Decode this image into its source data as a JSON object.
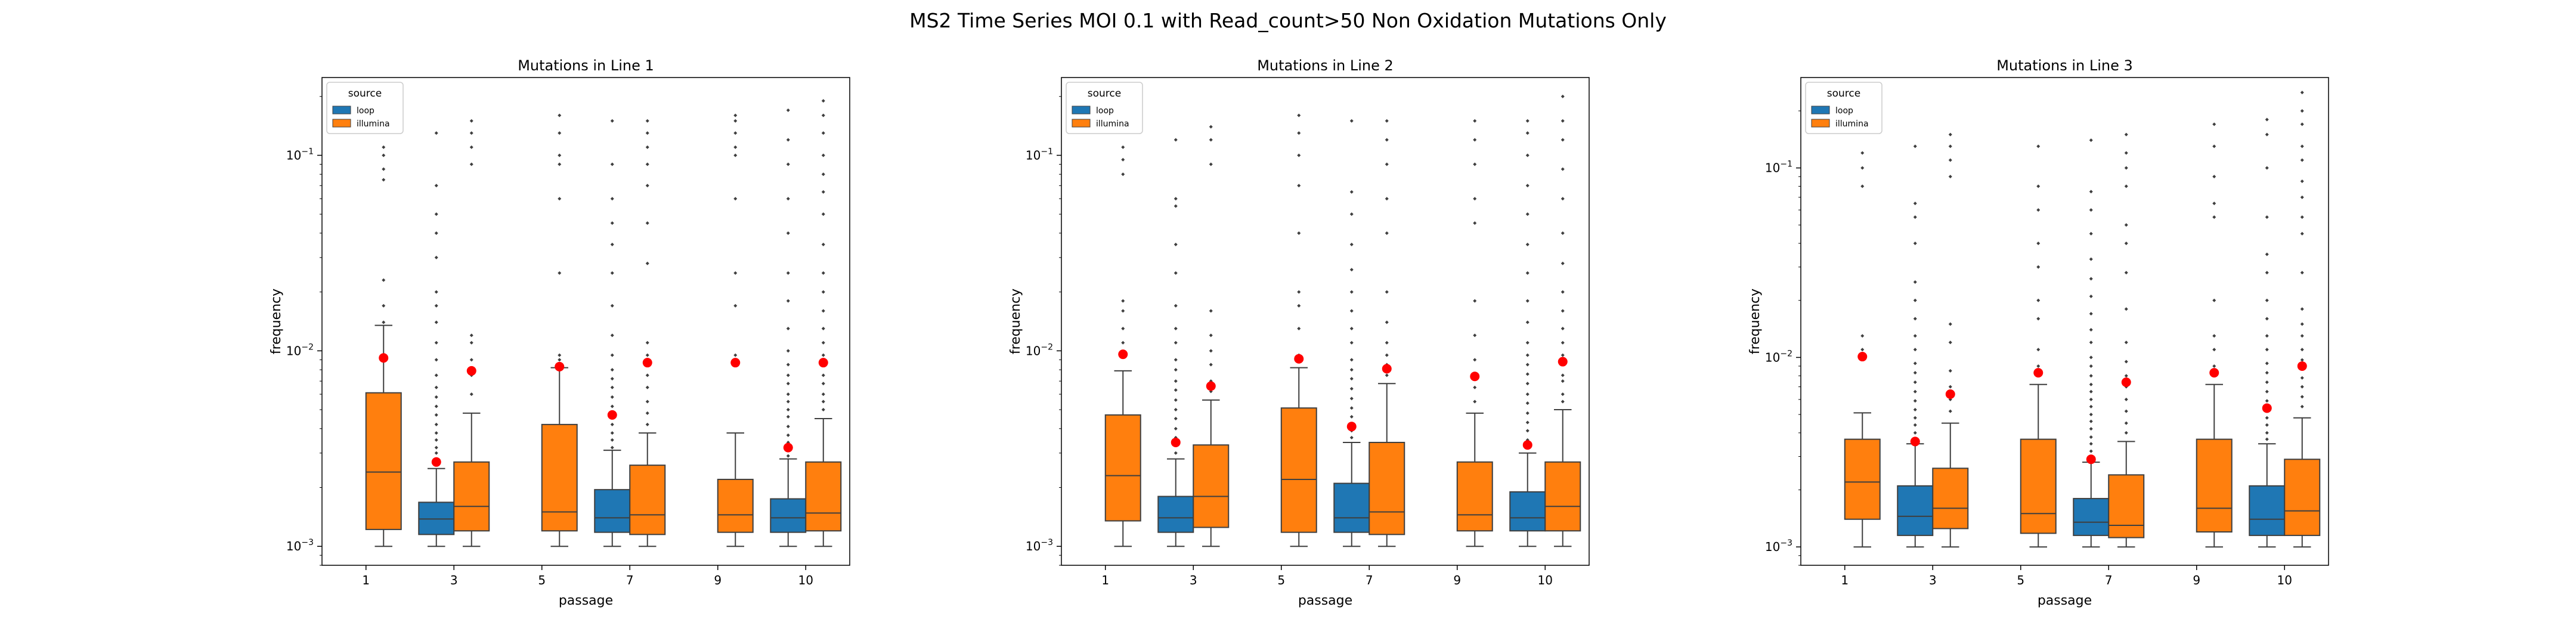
{
  "figure": {
    "suptitle": "MS2 Time Series MOI 0.1 with Read_count>50 Non Oxidation Mutations Only"
  },
  "colors": {
    "loop": "#1f77b4",
    "illumina": "#ff7f0e",
    "mean_marker": "#ff0000"
  },
  "chart_data": [
    {
      "type": "box",
      "title": "Mutations in Line 1",
      "xlabel": "passage",
      "ylabel": "frequency",
      "yscale": "log",
      "ylim": [
        0.0008,
        0.25
      ],
      "grid": false,
      "categories": [
        "1",
        "3",
        "5",
        "7",
        "9",
        "10"
      ],
      "legend": {
        "title": "source",
        "entries": [
          "loop",
          "illumina"
        ],
        "placement": "upper-left"
      },
      "series": [
        {
          "name": "loop",
          "color": "#1f77b4",
          "boxes": [
            null,
            {
              "whislo": 0.001,
              "q1": 0.00115,
              "median": 0.00138,
              "q3": 0.00168,
              "whishi": 0.0025,
              "mean": 0.0027,
              "fliers": [
                0.0028,
                0.003,
                0.0032,
                0.0035,
                0.0038,
                0.0042,
                0.0047,
                0.0052,
                0.0058,
                0.0065,
                0.0075,
                0.009,
                0.011,
                0.014,
                0.017,
                0.02,
                0.03,
                0.04,
                0.05,
                0.07,
                0.13
              ]
            },
            null,
            {
              "whislo": 0.001,
              "q1": 0.00118,
              "median": 0.0014,
              "q3": 0.00195,
              "whishi": 0.0031,
              "mean": 0.0047,
              "fliers": [
                0.0032,
                0.0035,
                0.0038,
                0.0042,
                0.0047,
                0.0052,
                0.0058,
                0.0065,
                0.0072,
                0.008,
                0.0095,
                0.012,
                0.017,
                0.025,
                0.035,
                0.045,
                0.06,
                0.09,
                0.15
              ]
            },
            null,
            {
              "whislo": 0.001,
              "q1": 0.00118,
              "median": 0.0014,
              "q3": 0.00175,
              "whishi": 0.0028,
              "mean": 0.0032,
              "fliers": [
                0.0029,
                0.0031,
                0.0034,
                0.0037,
                0.0041,
                0.0046,
                0.005,
                0.0055,
                0.006,
                0.0068,
                0.0075,
                0.0085,
                0.01,
                0.013,
                0.018,
                0.025,
                0.04,
                0.06,
                0.09,
                0.12,
                0.17
              ]
            }
          ]
        },
        {
          "name": "illumina",
          "color": "#ff7f0e",
          "boxes": [
            {
              "whislo": 0.001,
              "q1": 0.00122,
              "median": 0.0024,
              "q3": 0.0061,
              "whishi": 0.0135,
              "mean": 0.0092,
              "fliers": [
                0.014,
                0.017,
                0.023,
                0.075,
                0.085,
                0.1,
                0.11
              ]
            },
            {
              "whislo": 0.001,
              "q1": 0.0012,
              "median": 0.0016,
              "q3": 0.0027,
              "whishi": 0.0048,
              "mean": 0.0079,
              "fliers": [
                0.006,
                0.0075,
                0.009,
                0.011,
                0.012,
                0.09,
                0.11,
                0.13,
                0.15
              ]
            },
            {
              "whislo": 0.001,
              "q1": 0.0012,
              "median": 0.0015,
              "q3": 0.0042,
              "whishi": 0.0082,
              "mean": 0.0083,
              "fliers": [
                0.0085,
                0.009,
                0.0095,
                0.025,
                0.06,
                0.09,
                0.1,
                0.13,
                0.16
              ]
            },
            {
              "whislo": 0.001,
              "q1": 0.00115,
              "median": 0.00145,
              "q3": 0.0026,
              "whishi": 0.0038,
              "mean": 0.0087,
              "fliers": [
                0.0042,
                0.0048,
                0.0055,
                0.0065,
                0.0075,
                0.0085,
                0.0095,
                0.011,
                0.028,
                0.045,
                0.07,
                0.09,
                0.11,
                0.13,
                0.15
              ]
            },
            {
              "whislo": 0.001,
              "q1": 0.00118,
              "median": 0.00145,
              "q3": 0.0022,
              "whishi": 0.0038,
              "mean": 0.0087,
              "fliers": [
                0.0095,
                0.017,
                0.025,
                0.06,
                0.1,
                0.11,
                0.13,
                0.15,
                0.16
              ]
            },
            {
              "whislo": 0.001,
              "q1": 0.0012,
              "median": 0.00148,
              "q3": 0.0027,
              "whishi": 0.0045,
              "mean": 0.0087,
              "fliers": [
                0.005,
                0.0055,
                0.006,
                0.0068,
                0.0075,
                0.0085,
                0.0095,
                0.011,
                0.013,
                0.016,
                0.02,
                0.025,
                0.035,
                0.05,
                0.065,
                0.08,
                0.1,
                0.13,
                0.16,
                0.19
              ]
            }
          ]
        }
      ]
    },
    {
      "type": "box",
      "title": "Mutations in Line 2",
      "xlabel": "passage",
      "ylabel": "frequency",
      "yscale": "log",
      "ylim": [
        0.0008,
        0.25
      ],
      "grid": false,
      "categories": [
        "1",
        "3",
        "5",
        "7",
        "9",
        "10"
      ],
      "legend": {
        "title": "source",
        "entries": [
          "loop",
          "illumina"
        ],
        "placement": "upper-left"
      },
      "series": [
        {
          "name": "loop",
          "color": "#1f77b4",
          "boxes": [
            null,
            {
              "whislo": 0.001,
              "q1": 0.00118,
              "median": 0.0014,
              "q3": 0.0018,
              "whishi": 0.0028,
              "mean": 0.0034,
              "fliers": [
                0.003,
                0.0033,
                0.0036,
                0.004,
                0.0045,
                0.005,
                0.0056,
                0.0063,
                0.007,
                0.008,
                0.009,
                0.011,
                0.013,
                0.017,
                0.025,
                0.035,
                0.055,
                0.06,
                0.12
              ]
            },
            null,
            {
              "whislo": 0.001,
              "q1": 0.00118,
              "median": 0.0014,
              "q3": 0.0021,
              "whishi": 0.0034,
              "mean": 0.0041,
              "fliers": [
                0.0036,
                0.0039,
                0.0042,
                0.0046,
                0.0051,
                0.0057,
                0.0064,
                0.0072,
                0.008,
                0.009,
                0.011,
                0.013,
                0.016,
                0.02,
                0.026,
                0.035,
                0.05,
                0.065,
                0.15
              ]
            },
            null,
            {
              "whislo": 0.001,
              "q1": 0.0012,
              "median": 0.0014,
              "q3": 0.0019,
              "whishi": 0.003,
              "mean": 0.0033,
              "fliers": [
                0.0032,
                0.0035,
                0.0039,
                0.0043,
                0.0048,
                0.0054,
                0.006,
                0.0068,
                0.0076,
                0.0085,
                0.0095,
                0.011,
                0.014,
                0.018,
                0.025,
                0.035,
                0.05,
                0.07,
                0.1,
                0.13,
                0.15
              ]
            }
          ]
        },
        {
          "name": "illumina",
          "color": "#ff7f0e",
          "boxes": [
            {
              "whislo": 0.001,
              "q1": 0.00135,
              "median": 0.0023,
              "q3": 0.0047,
              "whishi": 0.0079,
              "mean": 0.0096,
              "fliers": [
                0.011,
                0.013,
                0.016,
                0.018,
                0.08,
                0.095,
                0.11
              ]
            },
            {
              "whislo": 0.001,
              "q1": 0.00125,
              "median": 0.0018,
              "q3": 0.0033,
              "whishi": 0.0056,
              "mean": 0.0066,
              "fliers": [
                0.0062,
                0.007,
                0.0085,
                0.01,
                0.012,
                0.016,
                0.09,
                0.12,
                0.14
              ]
            },
            {
              "whislo": 0.001,
              "q1": 0.00118,
              "median": 0.0022,
              "q3": 0.0051,
              "whishi": 0.0082,
              "mean": 0.0091,
              "fliers": [
                0.0095,
                0.013,
                0.017,
                0.02,
                0.04,
                0.07,
                0.1,
                0.13,
                0.16
              ]
            },
            {
              "whislo": 0.001,
              "q1": 0.00115,
              "median": 0.0015,
              "q3": 0.0034,
              "whishi": 0.0068,
              "mean": 0.0081,
              "fliers": [
                0.0075,
                0.0085,
                0.0095,
                0.011,
                0.014,
                0.02,
                0.04,
                0.06,
                0.09,
                0.12,
                0.15
              ]
            },
            {
              "whislo": 0.001,
              "q1": 0.0012,
              "median": 0.00145,
              "q3": 0.0027,
              "whishi": 0.0048,
              "mean": 0.0074,
              "fliers": [
                0.0055,
                0.0065,
                0.0075,
                0.009,
                0.012,
                0.018,
                0.045,
                0.06,
                0.09,
                0.12,
                0.15
              ]
            },
            {
              "whislo": 0.001,
              "q1": 0.0012,
              "median": 0.0016,
              "q3": 0.0027,
              "whishi": 0.005,
              "mean": 0.0088,
              "fliers": [
                0.0055,
                0.006,
                0.007,
                0.0075,
                0.0085,
                0.0095,
                0.011,
                0.013,
                0.016,
                0.02,
                0.028,
                0.04,
                0.06,
                0.085,
                0.12,
                0.15,
                0.2
              ]
            }
          ]
        }
      ]
    },
    {
      "type": "box",
      "title": "Mutations in Line 3",
      "xlabel": "passage",
      "ylabel": "frequency",
      "yscale": "log",
      "ylim": [
        0.0008,
        0.3
      ],
      "grid": false,
      "categories": [
        "1",
        "3",
        "5",
        "7",
        "9",
        "10"
      ],
      "legend": {
        "title": "source",
        "entries": [
          "loop",
          "illumina"
        ],
        "placement": "upper-left"
      },
      "series": [
        {
          "name": "loop",
          "color": "#1f77b4",
          "boxes": [
            null,
            {
              "whislo": 0.001,
              "q1": 0.00115,
              "median": 0.00145,
              "q3": 0.0021,
              "whishi": 0.0035,
              "mean": 0.0036,
              "fliers": [
                0.0037,
                0.004,
                0.0044,
                0.0048,
                0.0053,
                0.0059,
                0.0066,
                0.0074,
                0.0083,
                0.0093,
                0.011,
                0.013,
                0.016,
                0.02,
                0.025,
                0.04,
                0.055,
                0.065,
                0.13
              ]
            },
            null,
            {
              "whislo": 0.001,
              "q1": 0.00115,
              "median": 0.00135,
              "q3": 0.0018,
              "whishi": 0.0028,
              "mean": 0.0029,
              "fliers": [
                0.003,
                0.0032,
                0.0035,
                0.0038,
                0.0042,
                0.0046,
                0.005,
                0.0055,
                0.006,
                0.0066,
                0.0072,
                0.008,
                0.009,
                0.01,
                0.012,
                0.014,
                0.017,
                0.021,
                0.026,
                0.033,
                0.045,
                0.06,
                0.075,
                0.14
              ]
            },
            null,
            {
              "whislo": 0.001,
              "q1": 0.00115,
              "median": 0.0014,
              "q3": 0.0021,
              "whishi": 0.0035,
              "mean": 0.0054,
              "fliers": [
                0.0037,
                0.004,
                0.0044,
                0.0048,
                0.0053,
                0.0059,
                0.0066,
                0.0074,
                0.0083,
                0.0093,
                0.011,
                0.013,
                0.016,
                0.02,
                0.028,
                0.035,
                0.055,
                0.1,
                0.15,
                0.18
              ]
            }
          ]
        },
        {
          "name": "illumina",
          "color": "#ff7f0e",
          "boxes": [
            {
              "whislo": 0.001,
              "q1": 0.0014,
              "median": 0.0022,
              "q3": 0.0037,
              "whishi": 0.0051,
              "mean": 0.0101,
              "fliers": [
                0.011,
                0.013,
                0.08,
                0.1,
                0.12
              ]
            },
            {
              "whislo": 0.001,
              "q1": 0.00125,
              "median": 0.0016,
              "q3": 0.0026,
              "whishi": 0.0045,
              "mean": 0.0064,
              "fliers": [
                0.0052,
                0.006,
                0.007,
                0.0085,
                0.012,
                0.015,
                0.09,
                0.11,
                0.13,
                0.15
              ]
            },
            {
              "whislo": 0.001,
              "q1": 0.00118,
              "median": 0.0015,
              "q3": 0.0037,
              "whishi": 0.0072,
              "mean": 0.0083,
              "fliers": [
                0.009,
                0.011,
                0.016,
                0.02,
                0.03,
                0.04,
                0.06,
                0.08,
                0.13
              ]
            },
            {
              "whislo": 0.001,
              "q1": 0.00112,
              "median": 0.0013,
              "q3": 0.0024,
              "whishi": 0.0036,
              "mean": 0.0074,
              "fliers": [
                0.004,
                0.0045,
                0.0052,
                0.006,
                0.007,
                0.008,
                0.0095,
                0.012,
                0.018,
                0.028,
                0.04,
                0.05,
                0.08,
                0.1,
                0.12,
                0.15
              ]
            },
            {
              "whislo": 0.001,
              "q1": 0.0012,
              "median": 0.0016,
              "q3": 0.0037,
              "whishi": 0.0072,
              "mean": 0.0083,
              "fliers": [
                0.009,
                0.011,
                0.013,
                0.02,
                0.055,
                0.065,
                0.09,
                0.13,
                0.17
              ]
            },
            {
              "whislo": 0.001,
              "q1": 0.00115,
              "median": 0.00155,
              "q3": 0.0029,
              "whishi": 0.0048,
              "mean": 0.009,
              "fliers": [
                0.0055,
                0.0062,
                0.007,
                0.0078,
                0.0087,
                0.0097,
                0.011,
                0.013,
                0.015,
                0.018,
                0.028,
                0.045,
                0.055,
                0.07,
                0.085,
                0.11,
                0.13,
                0.17,
                0.2,
                0.25
              ]
            }
          ]
        }
      ]
    }
  ]
}
